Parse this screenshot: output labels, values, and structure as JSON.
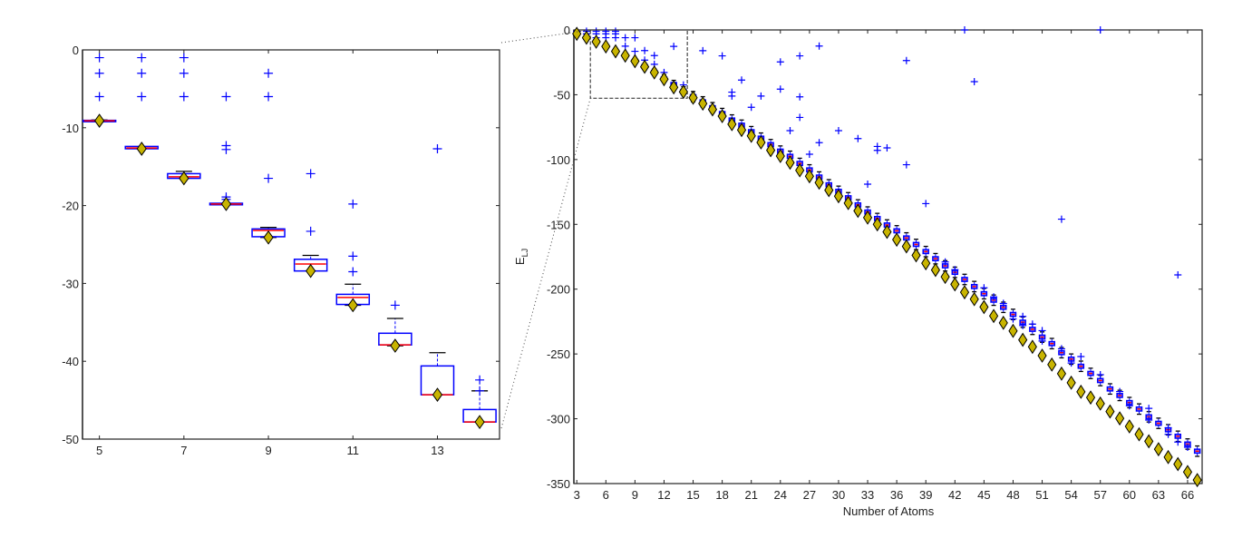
{
  "chart_data": [
    {
      "type": "box",
      "panel": "left",
      "xlabel": "",
      "ylabel": "",
      "xlim": [
        4.6,
        14.47
      ],
      "ylim": [
        -50,
        0
      ],
      "xticks": [
        5,
        7,
        9,
        11,
        13
      ],
      "yticks": [
        0,
        -10,
        -20,
        -30,
        -40,
        -50
      ],
      "box_columns": [
        "N",
        "whisker_lower",
        "q_lower",
        "median",
        "q_upper",
        "whisker_upper"
      ],
      "boxes": [
        [
          5,
          -9.2,
          -9.15,
          -9.1,
          -9.05,
          -9.0
        ],
        [
          6,
          -12.7,
          -12.7,
          -12.6,
          -12.4,
          -12.4
        ],
        [
          7,
          -16.5,
          -16.5,
          -16.3,
          -15.9,
          -15.6
        ],
        [
          8,
          -19.9,
          -19.9,
          -19.8,
          -19.7,
          -19.7
        ],
        [
          9,
          -24.1,
          -24.0,
          -23.2,
          -23.0,
          -22.8
        ],
        [
          10,
          -28.4,
          -28.4,
          -27.5,
          -26.9,
          -26.4
        ],
        [
          11,
          -32.8,
          -32.7,
          -31.8,
          -31.4,
          -30.1
        ],
        [
          12,
          -38.0,
          -37.9,
          -37.9,
          -36.4,
          -34.5
        ],
        [
          13,
          -44.3,
          -44.3,
          -44.3,
          -40.6,
          -38.9
        ],
        [
          14,
          -47.8,
          -47.8,
          -47.8,
          -46.2,
          -43.8
        ]
      ],
      "outliers": [
        [
          5,
          -1
        ],
        [
          5,
          -3
        ],
        [
          5,
          -6
        ],
        [
          6,
          -1
        ],
        [
          6,
          -3
        ],
        [
          6,
          -6
        ],
        [
          7,
          -1
        ],
        [
          7,
          -3
        ],
        [
          7,
          -6
        ],
        [
          8,
          -6
        ],
        [
          8,
          -12.3
        ],
        [
          8,
          -12.8
        ],
        [
          8,
          -18.9
        ],
        [
          8,
          -19.2
        ],
        [
          9,
          -3
        ],
        [
          9,
          -6
        ],
        [
          9,
          -16.5
        ],
        [
          10,
          -15.9
        ],
        [
          10,
          -23.3
        ],
        [
          11,
          -19.8
        ],
        [
          11,
          -26.5
        ],
        [
          11,
          -28.5
        ],
        [
          12,
          -32.8
        ],
        [
          13,
          -12.7
        ],
        [
          14,
          -42.4
        ],
        [
          14,
          -43.8
        ]
      ],
      "minima": [
        [
          5,
          -9.1
        ],
        [
          6,
          -12.7
        ],
        [
          7,
          -16.5
        ],
        [
          8,
          -19.8
        ],
        [
          9,
          -24.1
        ],
        [
          10,
          -28.4
        ],
        [
          11,
          -32.8
        ],
        [
          12,
          -38.0
        ],
        [
          13,
          -44.3
        ],
        [
          14,
          -47.8
        ]
      ]
    },
    {
      "type": "box",
      "panel": "right",
      "xlabel": "Number of Atoms",
      "ylabel_main": "E",
      "ylabel_sub": "LJ",
      "xlim": [
        2.7,
        67.5
      ],
      "ylim": [
        -350,
        0
      ],
      "xticks": [
        3,
        6,
        9,
        12,
        15,
        18,
        21,
        24,
        27,
        30,
        33,
        36,
        39,
        42,
        45,
        48,
        51,
        54,
        57,
        60,
        63,
        66
      ],
      "yticks": [
        0,
        -50,
        -100,
        -150,
        -200,
        -250,
        -300,
        -350
      ],
      "zoom_region": {
        "x": [
          4.4,
          14.4
        ],
        "y": [
          -52.7,
          0
        ]
      },
      "box_columns": [
        "N",
        "whisker_lower",
        "q_lower",
        "median",
        "q_upper",
        "whisker_upper"
      ],
      "boxes": [
        [
          3,
          -3,
          -3,
          -3,
          -3,
          -3
        ],
        [
          4,
          -6,
          -6,
          -6,
          -6,
          -6
        ],
        [
          5,
          -9.2,
          -9.15,
          -9.1,
          -9.05,
          -9.0
        ],
        [
          6,
          -12.7,
          -12.7,
          -12.6,
          -12.4,
          -12.4
        ],
        [
          7,
          -16.5,
          -16.5,
          -16.3,
          -15.9,
          -15.6
        ],
        [
          8,
          -19.9,
          -19.9,
          -19.8,
          -19.7,
          -19.7
        ],
        [
          9,
          -24.1,
          -24.0,
          -23.2,
          -23.0,
          -22.8
        ],
        [
          10,
          -28.4,
          -28.4,
          -27.5,
          -26.9,
          -26.4
        ],
        [
          11,
          -32.8,
          -32.7,
          -31.8,
          -31.4,
          -30.1
        ],
        [
          12,
          -38.0,
          -37.9,
          -37.9,
          -36.4,
          -34.5
        ],
        [
          13,
          -44.3,
          -44.3,
          -44.3,
          -40.6,
          -38.9
        ],
        [
          14,
          -47.8,
          -47.8,
          -47.8,
          -46.2,
          -43.8
        ],
        [
          15,
          -55.5,
          -53,
          -51.5,
          -50,
          -47.5
        ],
        [
          16,
          -59.5,
          -57,
          -55.5,
          -54,
          -51.5
        ],
        [
          17,
          -64,
          -61.5,
          -60,
          -58.5,
          -56
        ],
        [
          18,
          -68.5,
          -66,
          -64.5,
          -63,
          -60.5
        ],
        [
          19,
          -73.5,
          -71,
          -69.5,
          -68,
          -65.5
        ],
        [
          20,
          -77.5,
          -75,
          -73.5,
          -72,
          -69.5
        ],
        [
          21,
          -82.5,
          -80,
          -78.5,
          -77,
          -74.5
        ],
        [
          22,
          -87.5,
          -85,
          -83.5,
          -82,
          -79.5
        ],
        [
          23,
          -92.5,
          -90,
          -88.5,
          -87,
          -84.5
        ],
        [
          24,
          -97.5,
          -95,
          -93.5,
          -92,
          -89.5
        ],
        [
          25,
          -101.5,
          -99,
          -97.5,
          -96,
          -93.5
        ],
        [
          26,
          -107,
          -104.5,
          -103,
          -101.5,
          -99
        ],
        [
          27,
          -112,
          -109.5,
          -108,
          -106.5,
          -104
        ],
        [
          28,
          -117.5,
          -115,
          -113.5,
          -112,
          -109.5
        ],
        [
          29,
          -123.5,
          -121,
          -119.5,
          -118,
          -115.5
        ],
        [
          30,
          -128.5,
          -126,
          -124.5,
          -123,
          -120.5
        ],
        [
          31,
          -133.5,
          -131,
          -129.5,
          -128,
          -125.5
        ],
        [
          32,
          -139,
          -136.5,
          -135,
          -133.5,
          -131
        ],
        [
          33,
          -144.5,
          -142,
          -140.5,
          -139,
          -136.5
        ],
        [
          34,
          -149.5,
          -147,
          -145.5,
          -144,
          -141.5
        ],
        [
          35,
          -154.5,
          -152,
          -150.5,
          -149,
          -146.5
        ],
        [
          36,
          -159,
          -156.5,
          -155,
          -153.5,
          -151
        ],
        [
          37,
          -164.5,
          -162,
          -160.5,
          -159,
          -156.5
        ],
        [
          38,
          -169.5,
          -167,
          -165.5,
          -164,
          -161.5
        ],
        [
          39,
          -175,
          -172.5,
          -171,
          -169.5,
          -167
        ],
        [
          40,
          -180.5,
          -178,
          -176.5,
          -175,
          -172.5
        ],
        [
          41,
          -186,
          -183.5,
          -182,
          -180.5,
          -178
        ],
        [
          42,
          -191,
          -188.5,
          -187,
          -185.5,
          -183
        ],
        [
          43,
          -196.5,
          -194,
          -192.5,
          -191,
          -188.5
        ],
        [
          44,
          -202,
          -199.5,
          -198,
          -196.5,
          -194
        ],
        [
          45,
          -207.5,
          -205,
          -203.5,
          -202,
          -199.5
        ],
        [
          46,
          -212.5,
          -210,
          -208.5,
          -207,
          -204.5
        ],
        [
          47,
          -218,
          -215.5,
          -214,
          -212.5,
          -210
        ],
        [
          48,
          -223.5,
          -221,
          -219.5,
          -218,
          -215.5
        ],
        [
          49,
          -229.5,
          -227,
          -225.5,
          -224,
          -221.5
        ],
        [
          50,
          -235,
          -232.5,
          -231,
          -229.5,
          -227
        ],
        [
          51,
          -241,
          -238.5,
          -237,
          -235.5,
          -233
        ],
        [
          52,
          -246,
          -243.5,
          -242,
          -240.5,
          -238
        ],
        [
          53,
          -253,
          -250.5,
          -249,
          -247.5,
          -245
        ],
        [
          54,
          -258,
          -255.5,
          -254,
          -252.5,
          -250
        ],
        [
          55,
          -263.5,
          -261,
          -259.5,
          -258,
          -255.5
        ],
        [
          56,
          -269,
          -266.5,
          -265,
          -263.5,
          -261
        ],
        [
          57,
          -274.5,
          -272,
          -270.5,
          -269,
          -266.5
        ],
        [
          58,
          -281,
          -278.5,
          -277,
          -275.5,
          -273
        ],
        [
          59,
          -286,
          -283.5,
          -282,
          -280.5,
          -278
        ],
        [
          60,
          -291.5,
          -289,
          -287.5,
          -286,
          -283.5
        ],
        [
          61,
          -296.5,
          -294,
          -292.5,
          -291,
          -288.5
        ],
        [
          62,
          -302.5,
          -300,
          -298.5,
          -297,
          -294.5
        ],
        [
          63,
          -307.5,
          -305,
          -303.5,
          -302,
          -299.5
        ],
        [
          64,
          -312.5,
          -310,
          -308.5,
          -307,
          -304.5
        ],
        [
          65,
          -317.5,
          -315,
          -313.5,
          -312,
          -309.5
        ],
        [
          66,
          -323.5,
          -321,
          -319.5,
          -318,
          -315.5
        ],
        [
          67,
          -329,
          -326.5,
          -325,
          -323.5,
          -321
        ]
      ],
      "outliers": [
        [
          3,
          -1
        ],
        [
          4,
          -1
        ],
        [
          4,
          -3
        ],
        [
          5,
          -1
        ],
        [
          5,
          -3
        ],
        [
          5,
          -6
        ],
        [
          6,
          -1
        ],
        [
          6,
          -3
        ],
        [
          6,
          -6
        ],
        [
          7,
          -1
        ],
        [
          7,
          -3
        ],
        [
          7,
          -6
        ],
        [
          8,
          -6
        ],
        [
          8,
          -12.5
        ],
        [
          9,
          -6
        ],
        [
          9,
          -16.5
        ],
        [
          10,
          -15.9
        ],
        [
          10,
          -23.3
        ],
        [
          11,
          -19.8
        ],
        [
          11,
          -26.5
        ],
        [
          12,
          -32.8
        ],
        [
          13,
          -12.7
        ],
        [
          14,
          -42.4
        ],
        [
          16,
          -16
        ],
        [
          18,
          -20
        ],
        [
          19,
          -48
        ],
        [
          19,
          -51
        ],
        [
          20,
          -38.7
        ],
        [
          21,
          -59.7
        ],
        [
          22,
          -51
        ],
        [
          24,
          -24.7
        ],
        [
          24,
          -45.7
        ],
        [
          25,
          -77.7
        ],
        [
          26,
          -20
        ],
        [
          26,
          -51.6
        ],
        [
          26,
          -67.5
        ],
        [
          27,
          -95.9
        ],
        [
          28,
          -12.4
        ],
        [
          28,
          -87
        ],
        [
          30,
          -77.7
        ],
        [
          32,
          -83.8
        ],
        [
          33,
          -119
        ],
        [
          34,
          -89.9
        ],
        [
          34,
          -92.9
        ],
        [
          35,
          -91
        ],
        [
          37,
          -23.6
        ],
        [
          37,
          -104
        ],
        [
          39,
          -134
        ],
        [
          43,
          0
        ],
        [
          44,
          -39.9
        ],
        [
          53,
          -146
        ],
        [
          57,
          0
        ],
        [
          65,
          -189
        ],
        [
          41,
          -179
        ],
        [
          42,
          -185
        ],
        [
          45,
          -199
        ],
        [
          46,
          -206
        ],
        [
          47,
          -211
        ],
        [
          48,
          -223
        ],
        [
          49,
          -221
        ],
        [
          49,
          -228
        ],
        [
          50,
          -227
        ],
        [
          51,
          -232
        ],
        [
          51,
          -240
        ],
        [
          53,
          -246
        ],
        [
          54,
          -257
        ],
        [
          55,
          -252
        ],
        [
          57,
          -266
        ],
        [
          59,
          -279
        ],
        [
          60,
          -290
        ],
        [
          62,
          -292
        ],
        [
          62,
          -301
        ],
        [
          64,
          -307
        ],
        [
          64,
          -312
        ],
        [
          65,
          -318
        ],
        [
          66,
          -322
        ]
      ],
      "minima": [
        [
          3,
          -3.0
        ],
        [
          4,
          -6.0
        ],
        [
          5,
          -9.1
        ],
        [
          6,
          -12.7
        ],
        [
          7,
          -16.5
        ],
        [
          8,
          -19.8
        ],
        [
          9,
          -24.1
        ],
        [
          10,
          -28.4
        ],
        [
          11,
          -32.8
        ],
        [
          12,
          -38.0
        ],
        [
          13,
          -44.3
        ],
        [
          14,
          -47.8
        ],
        [
          15,
          -52.3
        ],
        [
          16,
          -56.8
        ],
        [
          17,
          -61.3
        ],
        [
          18,
          -66.5
        ],
        [
          19,
          -72.7
        ],
        [
          20,
          -77.2
        ],
        [
          21,
          -81.7
        ],
        [
          22,
          -86.8
        ],
        [
          23,
          -92.8
        ],
        [
          24,
          -97.3
        ],
        [
          25,
          -102.4
        ],
        [
          26,
          -108.3
        ],
        [
          27,
          -112.9
        ],
        [
          28,
          -117.8
        ],
        [
          29,
          -123.6
        ],
        [
          30,
          -128.3
        ],
        [
          31,
          -133.6
        ],
        [
          32,
          -139.6
        ],
        [
          33,
          -144.8
        ],
        [
          34,
          -150.0
        ],
        [
          35,
          -155.8
        ],
        [
          36,
          -161.8
        ],
        [
          37,
          -167.0
        ],
        [
          38,
          -173.9
        ],
        [
          39,
          -180.0
        ],
        [
          40,
          -185.2
        ],
        [
          41,
          -190.5
        ],
        [
          42,
          -196.3
        ],
        [
          43,
          -202.4
        ],
        [
          44,
          -207.7
        ],
        [
          45,
          -213.8
        ],
        [
          46,
          -220.7
        ],
        [
          47,
          -226.0
        ],
        [
          48,
          -232.2
        ],
        [
          49,
          -239.1
        ],
        [
          50,
          -244.5
        ],
        [
          51,
          -251.3
        ],
        [
          52,
          -258.2
        ],
        [
          53,
          -265.2
        ],
        [
          54,
          -272.2
        ],
        [
          55,
          -279.2
        ],
        [
          56,
          -283.6
        ],
        [
          57,
          -288.3
        ],
        [
          58,
          -294.4
        ],
        [
          59,
          -299.7
        ],
        [
          60,
          -305.9
        ],
        [
          61,
          -312.0
        ],
        [
          62,
          -317.4
        ],
        [
          63,
          -323.5
        ],
        [
          64,
          -329.6
        ],
        [
          65,
          -335.0
        ],
        [
          66,
          -341.1
        ],
        [
          67,
          -347.3
        ]
      ]
    }
  ],
  "colors": {
    "box": "#0000ff",
    "median": "#ff0000",
    "whisker_cap": "#000000",
    "minimum_marker": "#c8b400",
    "outlier": "#0000ff",
    "axis": "#222222"
  },
  "marker_icons": {
    "outlier": "plus-icon",
    "minimum": "diamond-icon"
  }
}
